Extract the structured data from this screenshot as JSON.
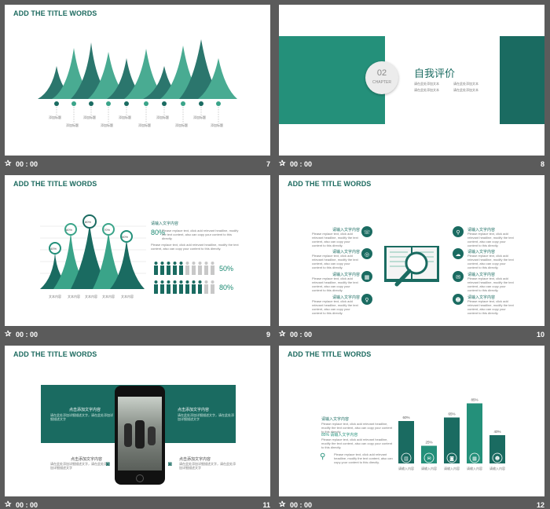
{
  "slides": [
    {
      "number": "7",
      "time": "00 : 00",
      "title": "ADD THE TITLE WORDS",
      "labels": [
        "添加标题",
        "添加标题",
        "添加标题",
        "添加标题",
        "添加标题",
        "添加标题",
        "添加标题",
        "添加标题",
        "添加标题",
        "添加标题"
      ]
    },
    {
      "number": "8",
      "time": "00 : 00",
      "chapter_num": "02",
      "chapter_label": "CHAPTER",
      "heading": "自我评价",
      "bullets": [
        "请在此处添加文本",
        "请在此处添加文本",
        "请在此处添加文本",
        "请在此处添加文本"
      ]
    },
    {
      "number": "9",
      "time": "00 : 00",
      "title": "ADD THE TITLE WORDS",
      "pin_labels": [
        "40%",
        "60%",
        "80%",
        "70%",
        "50%"
      ],
      "axis_labels": [
        "文本内容",
        "文本内容",
        "文本内容",
        "文本内容",
        "文本内容"
      ],
      "heading": "请输入文字内容",
      "big_pct": "80%",
      "body": "Please replace text, click add relevant headline, modify the text content, also can copy your content to this directly.",
      "stats": [
        "50%",
        "80%"
      ]
    },
    {
      "number": "10",
      "time": "00 : 00",
      "title": "ADD THE TITLE WORDS",
      "items": [
        "请输入文字内容",
        "请输入文字内容",
        "请输入文字内容",
        "请输入文字内容",
        "请输入文字内容",
        "请输入文字内容",
        "请输入文字内容",
        "请输入文字内容"
      ],
      "body": "Please replace text, click add relevant headline, modify the text content, also can copy your content to this directly."
    },
    {
      "number": "11",
      "time": "00 : 00",
      "title": "ADD THE TITLE WORDS",
      "items": [
        "点击添加文字内容",
        "点击添加文字内容",
        "点击添加文字内容",
        "点击添加文字内容"
      ],
      "body": "请在此处添加详细描述文字，请在此处添加详细描述文字"
    },
    {
      "number": "12",
      "time": "00 : 00",
      "title": "ADD THE TITLE WORDS",
      "heading": "请输入文字内容",
      "sub_heading": "85% 请输入文字内容",
      "body": "Please replace text, click add relevant headline, modify the text content, also can copy your content to this directly.",
      "bar_values": [
        60,
        25,
        65,
        85,
        40
      ],
      "bar_labels": [
        "60%",
        "25%",
        "65%",
        "85%",
        "40%"
      ],
      "axis_labels": [
        "请输入内容",
        "请输入内容",
        "请输入内容",
        "请输入内容",
        "请输入内容"
      ]
    }
  ],
  "colors": {
    "teal_dark": "#1a6b61",
    "teal": "#24907a",
    "teal_light": "#3aa489",
    "bg": "#5b5b5b"
  }
}
